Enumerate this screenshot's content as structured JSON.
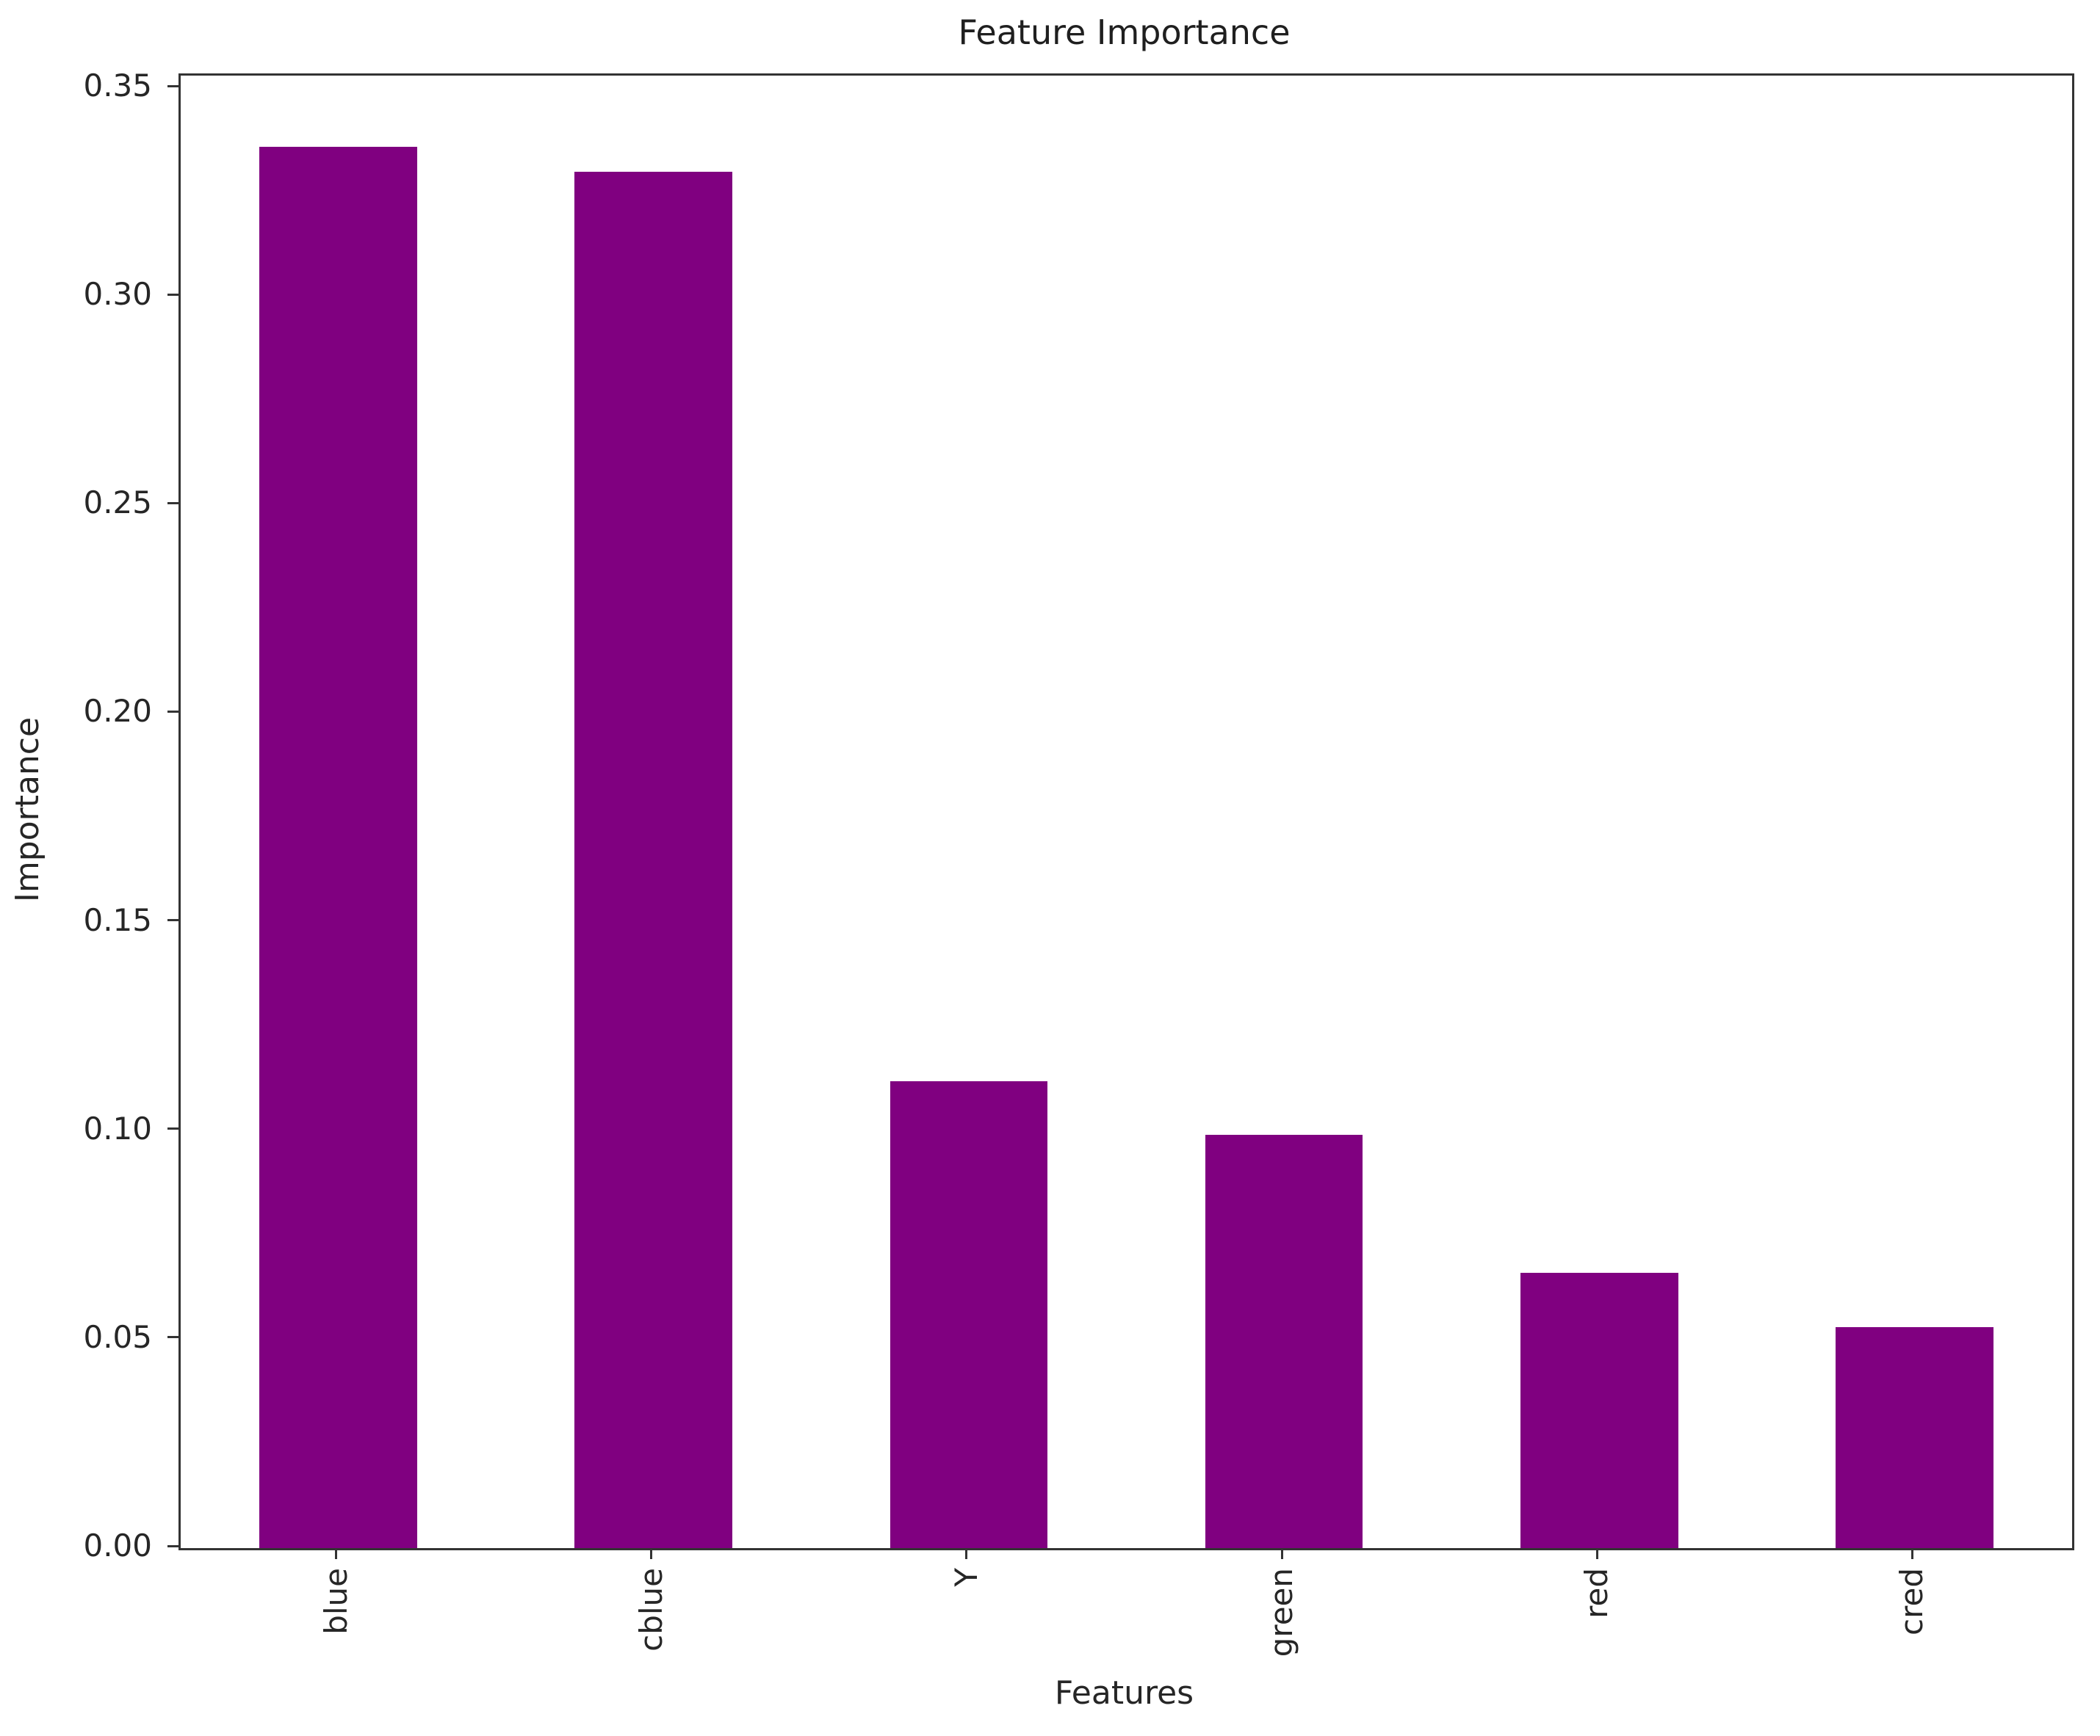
{
  "figure": {
    "title": "Feature Importance",
    "xlabel": "Features",
    "ylabel": "Importance"
  },
  "chart_data": {
    "type": "bar",
    "title": "Feature Importance",
    "xlabel": "Features",
    "ylabel": "Importance",
    "categories": [
      "blue",
      "cblue",
      "Y",
      "green",
      "red",
      "cred"
    ],
    "values": [
      0.336,
      0.33,
      0.112,
      0.099,
      0.066,
      0.053
    ],
    "ylim": [
      0,
      0.353
    ],
    "yticks": [
      "0.00",
      "0.05",
      "0.10",
      "0.15",
      "0.20",
      "0.25",
      "0.30",
      "0.35"
    ],
    "ytick_values": [
      0.0,
      0.05,
      0.1,
      0.15,
      0.2,
      0.25,
      0.3,
      0.35
    ],
    "bar_width_fraction": 0.5,
    "xtick_label_rotation_deg": 90,
    "grid": false,
    "legend_position": "none"
  },
  "colors": {
    "bar": "#800080",
    "spine": "#333333",
    "text": "#262626",
    "background": "#ffffff"
  }
}
